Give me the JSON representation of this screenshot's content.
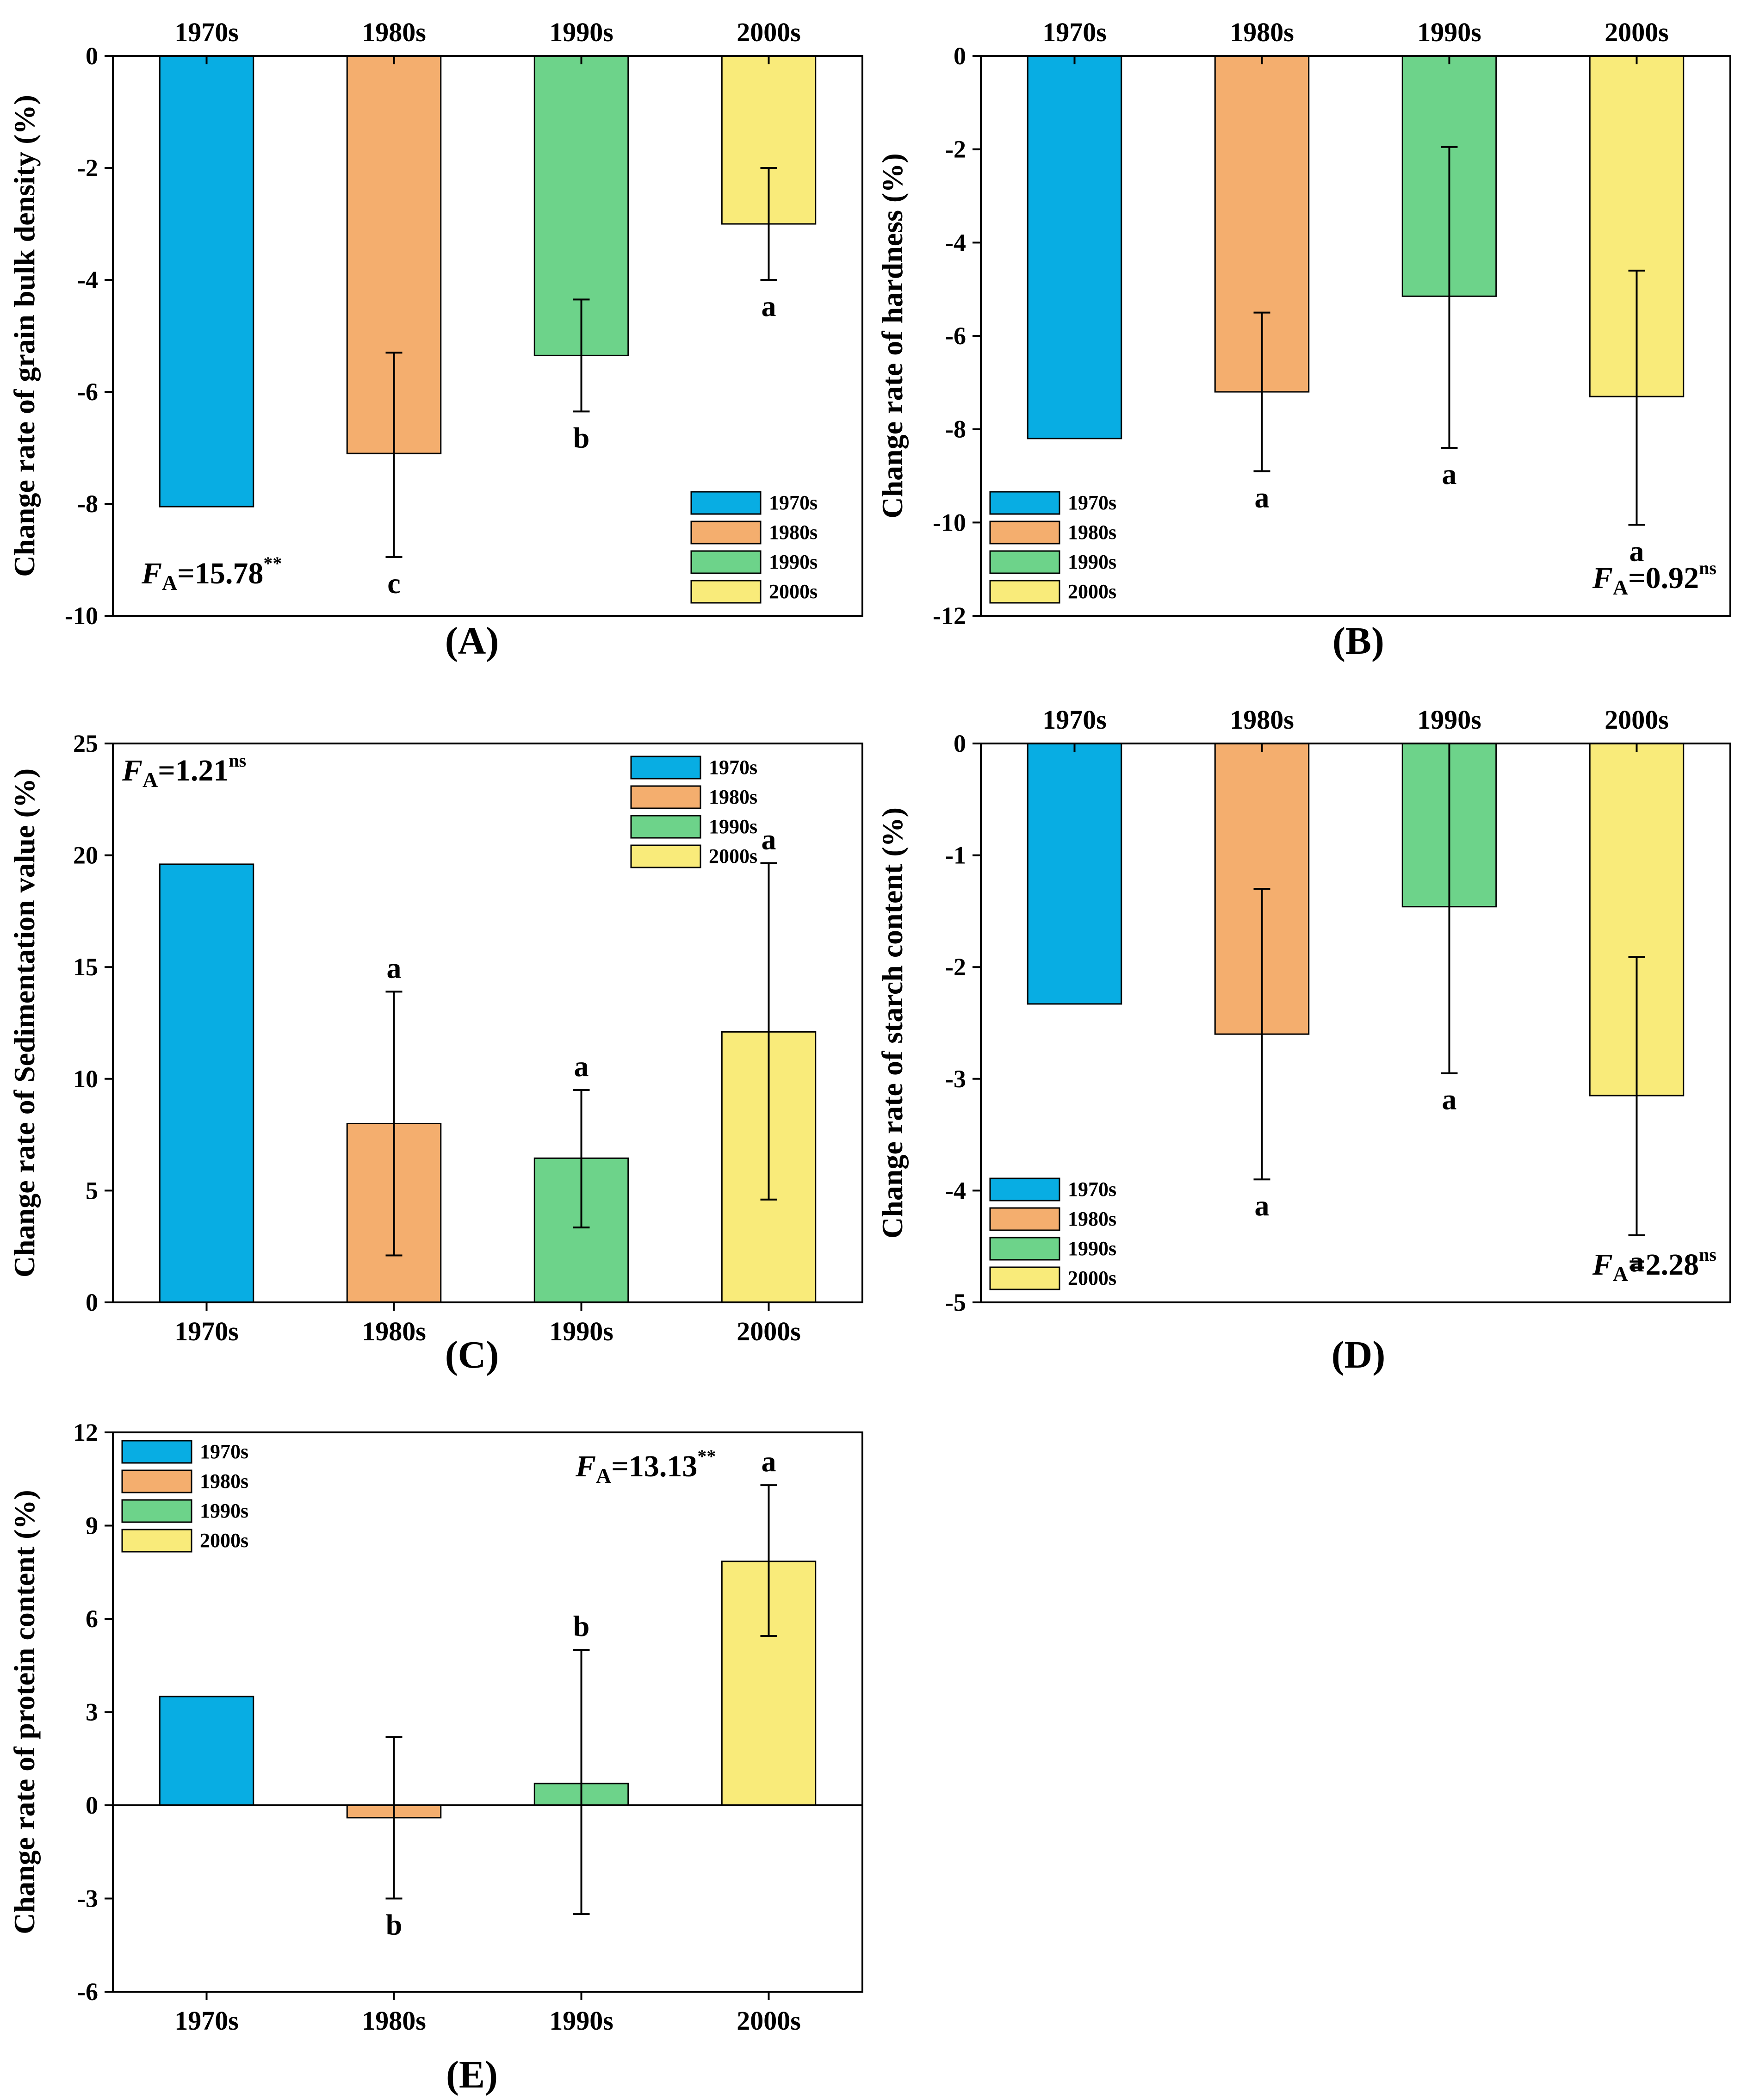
{
  "colors": {
    "1970s": "#08ADE3",
    "1980s": "#F4AE6E",
    "1990s": "#6DD38A",
    "2000s": "#F9EB7A"
  },
  "chart_data": [
    {
      "id": "A",
      "type": "bar",
      "panel_label": "(A)",
      "ylabel": "Change rate of grain bulk density (%)",
      "categories": [
        "1970s",
        "1980s",
        "1990s",
        "2000s"
      ],
      "category_axis": "top",
      "values": [
        -8.05,
        -7.1,
        -5.35,
        -3.0
      ],
      "error_low": [
        null,
        -8.95,
        -6.35,
        -4.0
      ],
      "error_high": [
        null,
        -5.3,
        -4.35,
        -2.0
      ],
      "letters": [
        "",
        "c",
        "b",
        "a"
      ],
      "ylim": [
        -10,
        0
      ],
      "yticks": [
        0,
        -2,
        -4,
        -6,
        -8,
        -10
      ],
      "ytick_labels": [
        "0",
        "-2",
        "-4",
        "-6",
        "-8",
        "-10"
      ],
      "legend": [
        "1970s",
        "1980s",
        "1990s",
        "2000s"
      ],
      "legend_position": "bottom-right",
      "f_stat": {
        "prefix": "F",
        "sub": "A",
        "value": "=15.78",
        "sup": "**",
        "position": "bottom-left"
      }
    },
    {
      "id": "B",
      "type": "bar",
      "panel_label": "(B)",
      "ylabel": "Change rate of hardness (%)",
      "categories": [
        "1970s",
        "1980s",
        "1990s",
        "2000s"
      ],
      "category_axis": "top",
      "values": [
        -8.2,
        -7.2,
        -5.15,
        -7.3
      ],
      "error_low": [
        null,
        -8.9,
        -8.4,
        -10.05
      ],
      "error_high": [
        null,
        -5.5,
        -1.95,
        -4.6
      ],
      "letters": [
        "",
        "a",
        "a",
        "a"
      ],
      "ylim": [
        -12,
        0
      ],
      "yticks": [
        0,
        -2,
        -4,
        -6,
        -8,
        -10,
        -12
      ],
      "ytick_labels": [
        "0",
        "-2",
        "-4",
        "-6",
        "-8",
        "-10",
        "-12"
      ],
      "legend": [
        "1970s",
        "1980s",
        "1990s",
        "2000s"
      ],
      "legend_position": "bottom-left",
      "f_stat": {
        "prefix": "F",
        "sub": "A",
        "value": "=0.92",
        "sup": "ns",
        "position": "bottom-right"
      }
    },
    {
      "id": "C",
      "type": "bar",
      "panel_label": "(C)",
      "ylabel": "Change rate of Sedimentation value (%)",
      "categories": [
        "1970s",
        "1980s",
        "1990s",
        "2000s"
      ],
      "category_axis": "bottom",
      "values": [
        19.6,
        8.0,
        6.45,
        12.1
      ],
      "error_low": [
        null,
        2.1,
        3.35,
        4.6
      ],
      "error_high": [
        null,
        13.9,
        9.5,
        19.65
      ],
      "letters": [
        "",
        "a",
        "a",
        "a"
      ],
      "ylim": [
        0,
        25
      ],
      "yticks": [
        0,
        5,
        10,
        15,
        20,
        25
      ],
      "ytick_labels": [
        "0",
        "5",
        "10",
        "15",
        "20",
        "25"
      ],
      "legend": [
        "1970s",
        "1980s",
        "1990s",
        "2000s"
      ],
      "legend_position": "top-right",
      "f_stat": {
        "prefix": "F",
        "sub": "A",
        "value": "=1.21",
        "sup": "ns",
        "position": "top-left"
      }
    },
    {
      "id": "D",
      "type": "bar",
      "panel_label": "(D)",
      "ylabel": "Change rate of starch content (%)",
      "categories": [
        "1970s",
        "1980s",
        "1990s",
        "2000s"
      ],
      "category_axis": "top",
      "values": [
        -2.33,
        -2.6,
        -1.46,
        -3.15
      ],
      "error_low": [
        null,
        -3.9,
        -2.95,
        -4.4
      ],
      "error_high": [
        null,
        -1.3,
        0.0,
        -1.91
      ],
      "letters": [
        "",
        "a",
        "a",
        "a"
      ],
      "ylim": [
        -5,
        0
      ],
      "yticks": [
        0,
        -1,
        -2,
        -3,
        -4,
        -5
      ],
      "ytick_labels": [
        "0",
        "-1",
        "-2",
        "-3",
        "-4",
        "-5"
      ],
      "legend": [
        "1970s",
        "1980s",
        "1990s",
        "2000s"
      ],
      "legend_position": "bottom-left",
      "f_stat": {
        "prefix": "F",
        "sub": "A",
        "value": "=2.28",
        "sup": "ns",
        "position": "bottom-right"
      }
    },
    {
      "id": "E",
      "type": "bar",
      "panel_label": "(E)",
      "ylabel": "Change rate of protein content (%)",
      "categories": [
        "1970s",
        "1980s",
        "1990s",
        "2000s"
      ],
      "category_axis": "bottom",
      "values": [
        3.5,
        -0.4,
        0.7,
        7.85
      ],
      "error_low": [
        null,
        -3.0,
        -3.5,
        5.45
      ],
      "error_high": [
        null,
        2.2,
        5.0,
        10.3
      ],
      "letters": [
        "",
        "b",
        "b",
        "a"
      ],
      "ylim": [
        -6,
        12
      ],
      "yticks": [
        -6,
        -3,
        0,
        3,
        6,
        9,
        12
      ],
      "ytick_labels": [
        "-6",
        "-3",
        "0",
        "3",
        "6",
        "9",
        "12"
      ],
      "zero_line": true,
      "legend": [
        "1970s",
        "1980s",
        "1990s",
        "2000s"
      ],
      "legend_position": "top-left",
      "f_stat": {
        "prefix": "F",
        "sub": "A",
        "value": "=13.13",
        "sup": "**",
        "position": "top-right"
      }
    }
  ]
}
